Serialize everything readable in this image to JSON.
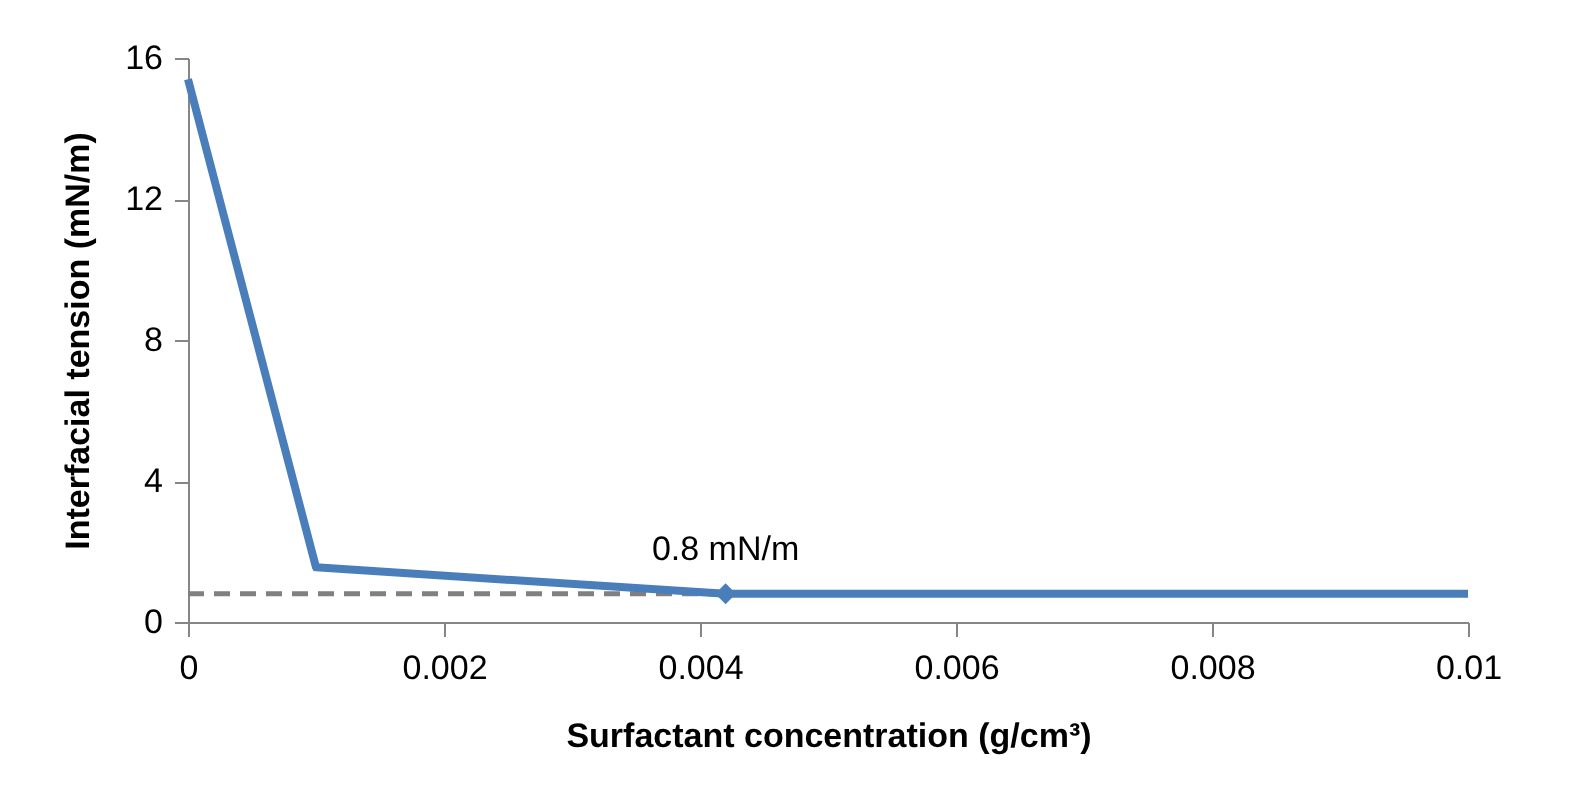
{
  "chart_data": {
    "type": "line",
    "xlabel": "Surfactant concentration (g/cm³)",
    "ylabel": "Interfacial tension (mN/m)",
    "series": [
      {
        "color": "#808080",
        "line_style": "dashed",
        "marker": "none",
        "x": [
          0,
          0.0042
        ],
        "values": [
          0.8,
          0.8
        ]
      },
      {
        "color": "#4a7ebb",
        "line_style": "solid",
        "marker": "none",
        "x": [
          0,
          0.001,
          0.0042,
          0.01
        ],
        "values": [
          15.4,
          1.55,
          0.8,
          0.8
        ]
      },
      {
        "type": "scatter",
        "color": "#4a7ebb",
        "marker": "diamond",
        "x": [
          0.0042
        ],
        "values": [
          0.8
        ]
      }
    ],
    "annotations": [
      {
        "text": "0.8 mN/m",
        "x": 0.0042,
        "y": 0.8
      }
    ],
    "xlim": [
      0,
      0.01
    ],
    "xticks": [
      0,
      0.002,
      0.004,
      0.006,
      0.008,
      0.01
    ],
    "ylim": [
      0,
      16
    ],
    "yticks": [
      0,
      4,
      8,
      12,
      16
    ],
    "grid": false
  }
}
